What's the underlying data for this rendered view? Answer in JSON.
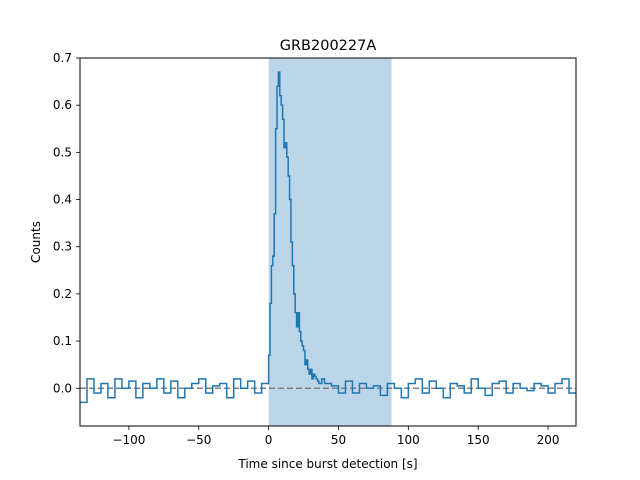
{
  "chart_data": {
    "type": "line",
    "title": "GRB200227A",
    "xlabel": "Time since burst detection [s]",
    "ylabel": "Counts",
    "xlim": [
      -135,
      220
    ],
    "ylim": [
      -0.08,
      0.7
    ],
    "xticks": [
      -100,
      -50,
      0,
      50,
      100,
      150,
      200
    ],
    "xtick_labels": [
      "−100",
      "−50",
      "0",
      "50",
      "100",
      "150",
      "200"
    ],
    "yticks": [
      0.0,
      0.1,
      0.2,
      0.3,
      0.4,
      0.5,
      0.6,
      0.7
    ],
    "ytick_labels": [
      "0.0",
      "0.1",
      "0.2",
      "0.3",
      "0.4",
      "0.5",
      "0.6",
      "0.7"
    ],
    "grid": false,
    "highlight_span": [
      0,
      88
    ],
    "baseline": 0.0,
    "series": [
      {
        "style": "steps",
        "color": "#1f77b4",
        "x": [
          -135,
          -130,
          -125,
          -120,
          -115,
          -110,
          -105,
          -100,
          -95,
          -90,
          -85,
          -80,
          -75,
          -70,
          -65,
          -60,
          -55,
          -50,
          -45,
          -40,
          -35,
          -30,
          -25,
          -20,
          -15,
          -10,
          -5,
          0,
          1,
          2,
          3,
          4,
          5,
          6,
          7,
          8,
          9,
          10,
          11,
          12,
          13,
          14,
          15,
          16,
          17,
          18,
          19,
          20,
          21,
          22,
          23,
          24,
          25,
          26,
          27,
          28,
          29,
          30,
          31,
          32,
          33,
          34,
          35,
          36,
          38,
          40,
          45,
          50,
          55,
          60,
          65,
          70,
          75,
          80,
          85,
          90,
          95,
          100,
          105,
          110,
          115,
          120,
          125,
          130,
          135,
          140,
          145,
          150,
          155,
          160,
          165,
          170,
          175,
          180,
          185,
          190,
          195,
          200,
          205,
          210,
          215
        ],
        "y": [
          -0.03,
          0.02,
          -0.01,
          0.01,
          -0.02,
          0.02,
          0.0,
          0.015,
          -0.02,
          0.01,
          0.0,
          0.02,
          -0.01,
          0.015,
          -0.02,
          0.0,
          0.01,
          0.02,
          -0.01,
          0.005,
          0.01,
          -0.02,
          0.02,
          0.0,
          0.015,
          -0.01,
          0.01,
          0.07,
          0.18,
          0.26,
          0.28,
          0.37,
          0.55,
          0.64,
          0.67,
          0.62,
          0.6,
          0.57,
          0.51,
          0.52,
          0.49,
          0.45,
          0.4,
          0.31,
          0.26,
          0.2,
          0.16,
          0.13,
          0.16,
          0.12,
          0.1,
          0.09,
          0.08,
          0.05,
          0.06,
          0.04,
          0.03,
          0.04,
          0.02,
          0.03,
          0.025,
          0.02,
          0.015,
          0.01,
          0.02,
          0.01,
          0.005,
          -0.01,
          0.015,
          -0.01,
          0.01,
          0.0,
          0.005,
          -0.015,
          0.01,
          0.0,
          -0.02,
          0.01,
          0.02,
          -0.01,
          0.015,
          0.0,
          -0.02,
          0.01,
          0.005,
          -0.01,
          0.02,
          0.0,
          -0.015,
          0.01,
          0.015,
          -0.01,
          0.01,
          0.0,
          -0.005,
          0.01,
          0.005,
          -0.01,
          0.01,
          0.02,
          -0.01
        ]
      }
    ]
  }
}
